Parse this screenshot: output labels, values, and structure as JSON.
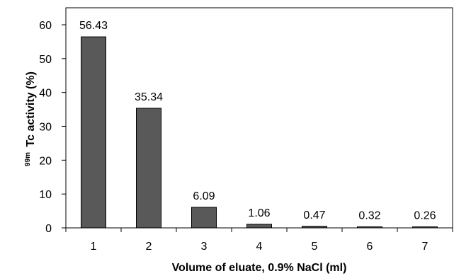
{
  "chart_data": {
    "type": "bar",
    "categories": [
      "1",
      "2",
      "3",
      "4",
      "5",
      "6",
      "7"
    ],
    "values": [
      56.43,
      35.34,
      6.09,
      1.06,
      0.47,
      0.32,
      0.26
    ],
    "data_labels": [
      "56.43",
      "35.34",
      "6.09",
      "1.06",
      "0.47",
      "0.32",
      "0.26"
    ],
    "xlabel": "Volume of eluate, 0.9% NaCl (ml)",
    "ylabel_sup": "99m",
    "ylabel": "Tc activity (%)",
    "ylim": [
      0,
      60
    ],
    "yticks": [
      0,
      10,
      20,
      30,
      40,
      50,
      60
    ],
    "ytick_labels": [
      "0",
      "10",
      "20",
      "30",
      "40",
      "50",
      "60"
    ],
    "grid": false,
    "bar_color": "#595959",
    "bar_edge_color": "#000000"
  }
}
